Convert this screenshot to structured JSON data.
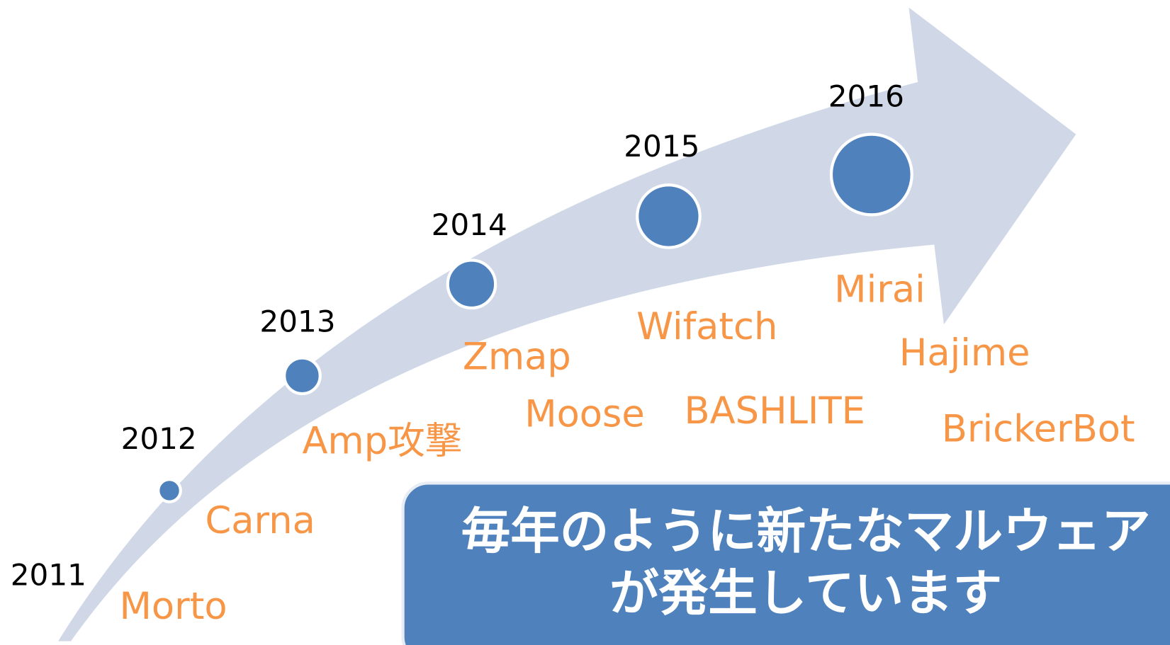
{
  "timeline": [
    {
      "year": "2011",
      "malware": [
        "Morto"
      ]
    },
    {
      "year": "2012",
      "malware": [
        "Carna"
      ]
    },
    {
      "year": "2013",
      "malware": [
        "Amp攻撃"
      ]
    },
    {
      "year": "2014",
      "malware": [
        "Zmap",
        "Moose"
      ]
    },
    {
      "year": "2015",
      "malware": [
        "Wifatch",
        "BASHLITE"
      ]
    },
    {
      "year": "2016",
      "malware": [
        "Mirai",
        "Hajime",
        "BrickerBot"
      ]
    }
  ],
  "callout": {
    "lines": [
      "毎年のように新たなマルウェア",
      "が発生しています"
    ]
  }
}
